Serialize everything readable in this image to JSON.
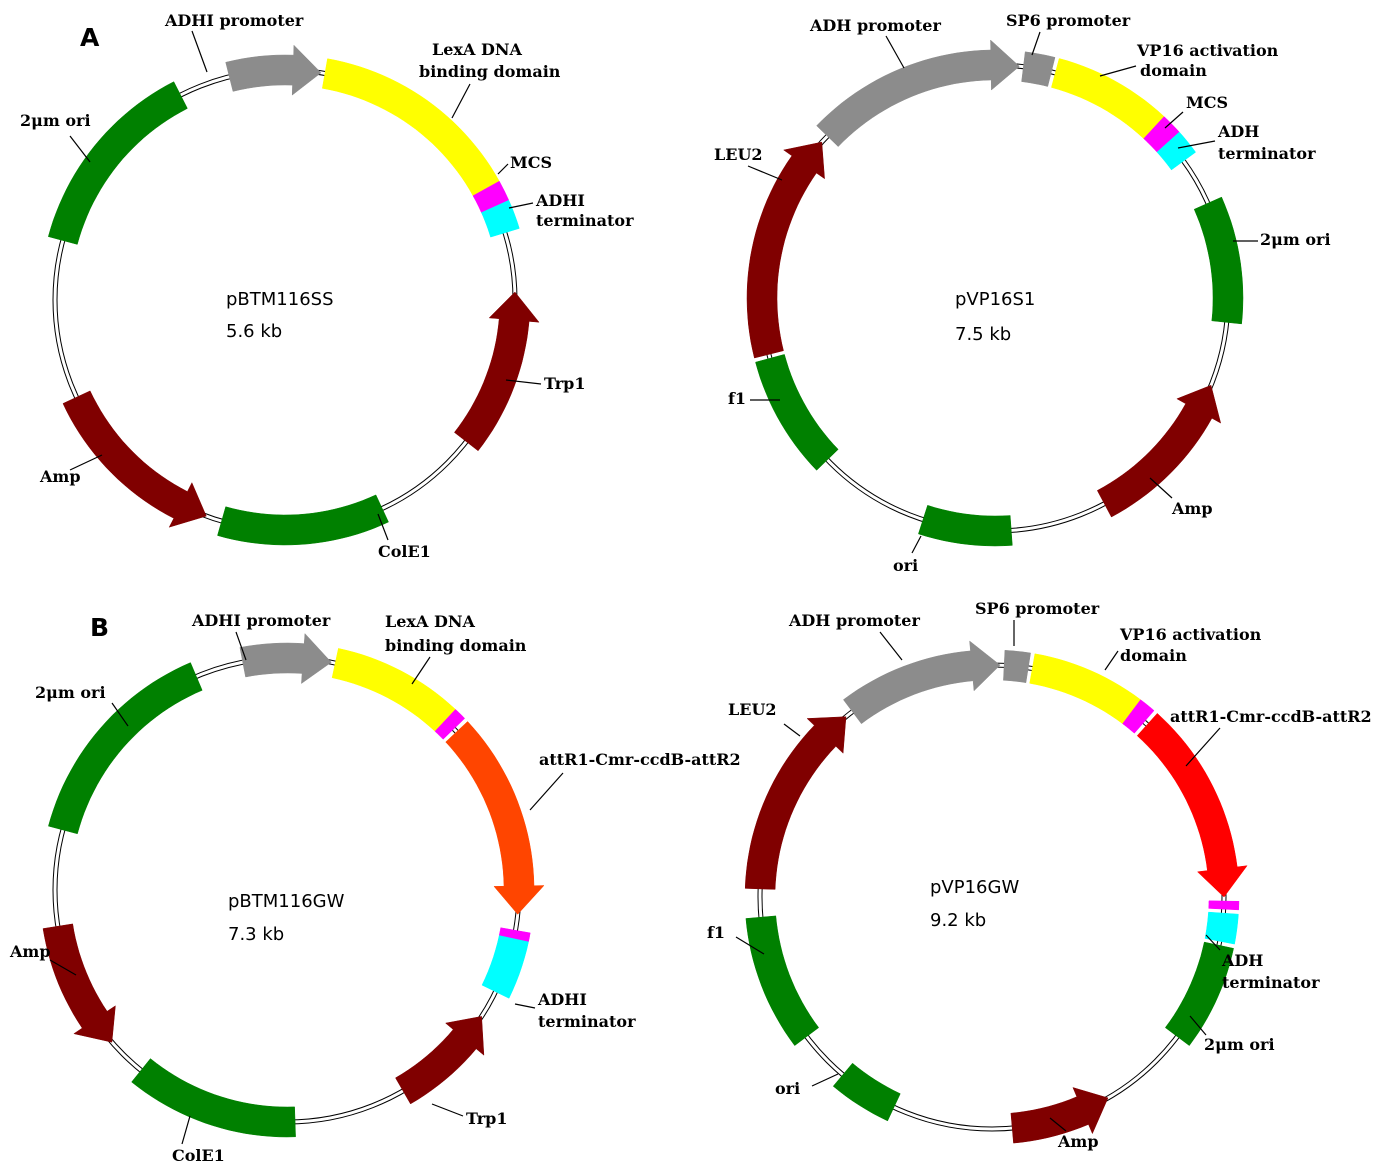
{
  "panels": [
    {
      "id": "A",
      "label": "A"
    },
    {
      "id": "B",
      "label": "B"
    }
  ],
  "plasmids": [
    {
      "name": "pBTM116SS",
      "size": "5.6 kb",
      "features": [
        {
          "label": "ADHI promoter",
          "color": "#8c8c8c",
          "arrow": true
        },
        {
          "label": "LexA DNA binding domain",
          "lines": [
            "LexA DNA",
            "binding domain"
          ],
          "color": "#ffff00",
          "arrow": false
        },
        {
          "label": "MCS",
          "color": "#ff00ff",
          "arrow": false
        },
        {
          "label": "ADHI terminator",
          "lines": [
            "ADHI",
            "terminator"
          ],
          "color": "#00ffff",
          "arrow": false
        },
        {
          "label": "Trp1",
          "color": "#800000",
          "arrow": true
        },
        {
          "label": "ColE1",
          "color": "#008000",
          "arrow": false
        },
        {
          "label": "Amp",
          "color": "#800000",
          "arrow": true
        },
        {
          "label": "2μm ori",
          "color": "#008000",
          "arrow": false
        }
      ]
    },
    {
      "name": "pVP16S1",
      "size": "7.5 kb",
      "features": [
        {
          "label": "ADH promoter",
          "color": "#8c8c8c",
          "arrow": true
        },
        {
          "label": "SP6 promoter",
          "color": "#8c8c8c",
          "arrow": false
        },
        {
          "label": "VP16 activation domain",
          "lines": [
            "VP16 activation",
            "domain"
          ],
          "color": "#ffff00",
          "arrow": false
        },
        {
          "label": "MCS",
          "color": "#ff00ff",
          "arrow": false
        },
        {
          "label": "ADH terminator",
          "lines": [
            "ADH",
            "terminator"
          ],
          "color": "#00ffff",
          "arrow": false
        },
        {
          "label": "2μm ori",
          "color": "#008000",
          "arrow": false
        },
        {
          "label": "Amp",
          "color": "#800000",
          "arrow": true
        },
        {
          "label": "ori",
          "color": "#008000",
          "arrow": false
        },
        {
          "label": "f1",
          "color": "#008000",
          "arrow": false
        },
        {
          "label": "LEU2",
          "color": "#800000",
          "arrow": true
        }
      ]
    },
    {
      "name": "pBTM116GW",
      "size": "7.3 kb",
      "features": [
        {
          "label": "ADHI promoter",
          "color": "#8c8c8c",
          "arrow": true
        },
        {
          "label": "LexA DNA binding domain",
          "lines": [
            "LexA DNA",
            "binding domain"
          ],
          "color": "#ffff00",
          "arrow": false
        },
        {
          "label": "attR1-Cmr-ccdB-attR2",
          "color": "#ff4500",
          "arrow": true
        },
        {
          "label": "ADHI terminator",
          "lines": [
            "ADHI",
            "terminator"
          ],
          "color": "#00ffff",
          "arrow": false
        },
        {
          "label": "Trp1",
          "color": "#800000",
          "arrow": true
        },
        {
          "label": "ColE1",
          "color": "#008000",
          "arrow": false
        },
        {
          "label": "Amp",
          "color": "#800000",
          "arrow": true
        },
        {
          "label": "2μm ori",
          "color": "#008000",
          "arrow": false
        }
      ]
    },
    {
      "name": "pVP16GW",
      "size": "9.2 kb",
      "features": [
        {
          "label": "ADH promoter",
          "color": "#8c8c8c",
          "arrow": true
        },
        {
          "label": "SP6 promoter",
          "color": "#8c8c8c",
          "arrow": false
        },
        {
          "label": "VP16 activation domain",
          "lines": [
            "VP16 activation",
            "domain"
          ],
          "color": "#ffff00",
          "arrow": false
        },
        {
          "label": "attR1-Cmr-ccdB-attR2",
          "color": "#ff0000",
          "arrow": true
        },
        {
          "label": "ADH terminator",
          "lines": [
            "ADH",
            "terminator"
          ],
          "color": "#00ffff",
          "arrow": false
        },
        {
          "label": "2μm ori",
          "color": "#008000",
          "arrow": false
        },
        {
          "label": "Amp",
          "color": "#800000",
          "arrow": true
        },
        {
          "label": "ori",
          "color": "#008000",
          "arrow": false
        },
        {
          "label": "f1",
          "color": "#008000",
          "arrow": false
        },
        {
          "label": "LEU2",
          "color": "#800000",
          "arrow": true
        }
      ]
    }
  ]
}
